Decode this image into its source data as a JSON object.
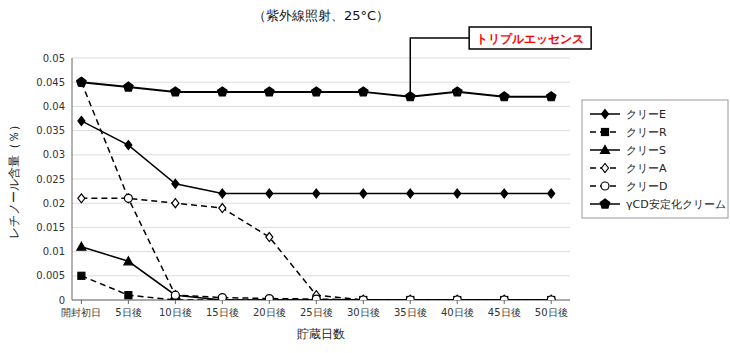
{
  "chart_data": {
    "type": "line",
    "title": "（紫外線照射、25°C）",
    "x_label": "貯蔵日数",
    "y_label": "レチノール含量（％）",
    "x": [
      0,
      5,
      10,
      15,
      20,
      25,
      30,
      35,
      40,
      45,
      50
    ],
    "xlim": [
      -1,
      52
    ],
    "xticks": [
      {
        "value": 0,
        "label": "開封初日"
      },
      {
        "value": 5,
        "label": "5日後"
      },
      {
        "value": 10,
        "label": "10日後"
      },
      {
        "value": 15,
        "label": "15日後"
      },
      {
        "value": 20,
        "label": "20日後"
      },
      {
        "value": 25,
        "label": "25日後"
      },
      {
        "value": 30,
        "label": "30日後"
      },
      {
        "value": 35,
        "label": "35日後"
      },
      {
        "value": 40,
        "label": "40日後"
      },
      {
        "value": 45,
        "label": "45日後"
      },
      {
        "value": 50,
        "label": "50日後"
      }
    ],
    "ylim": [
      0,
      0.05
    ],
    "yticks": [
      0,
      0.005,
      0.01,
      0.015,
      0.02,
      0.025,
      0.03,
      0.035,
      0.04,
      0.045,
      0.05
    ],
    "grid": "y",
    "legend": "right",
    "series": [
      {
        "name": "クリーE",
        "color": "#000000",
        "line_style": "solid",
        "marker": "diamond",
        "values": [
          0.037,
          0.032,
          0.024,
          0.022,
          0.022,
          0.022,
          0.022,
          0.022,
          0.022,
          0.022,
          0.022
        ]
      },
      {
        "name": "クリーR",
        "color": "#000000",
        "line_style": "dashed",
        "marker": "square",
        "values": [
          0.005,
          0.001,
          0.0,
          0.0,
          0.0,
          0.0,
          0.0,
          0.0,
          0.0,
          0.0,
          0.0
        ]
      },
      {
        "name": "クリーS",
        "color": "#000000",
        "line_style": "solid",
        "marker": "triangle",
        "values": [
          0.011,
          0.008,
          0.001,
          0.0,
          0.0,
          0.0,
          0.0,
          0.0,
          0.0,
          0.0,
          0.0
        ]
      },
      {
        "name": "クリーA",
        "color": "#000000",
        "line_style": "dashed",
        "marker": "diamond-open",
        "values": [
          0.021,
          0.021,
          0.02,
          0.019,
          0.013,
          0.001,
          0.0,
          0.0,
          0.0,
          0.0,
          0.0
        ]
      },
      {
        "name": "クリーD",
        "color": "#000000",
        "line_style": "dashed",
        "marker": "circle-open",
        "values": [
          0.045,
          0.021,
          0.001,
          0.0005,
          0.0003,
          0.0002,
          0.0,
          0.0,
          0.0,
          0.0,
          0.0
        ]
      },
      {
        "name": "γCD安定化クリーム",
        "color": "#000000",
        "line_style": "solid",
        "marker": "pentagon",
        "values": [
          0.045,
          0.044,
          0.043,
          0.043,
          0.043,
          0.043,
          0.043,
          0.042,
          0.043,
          0.042,
          0.042
        ]
      }
    ],
    "annotations": [
      {
        "text": "トリプルエッセンス",
        "color": "#ff0000",
        "x": 35,
        "y": 0.043
      }
    ]
  }
}
